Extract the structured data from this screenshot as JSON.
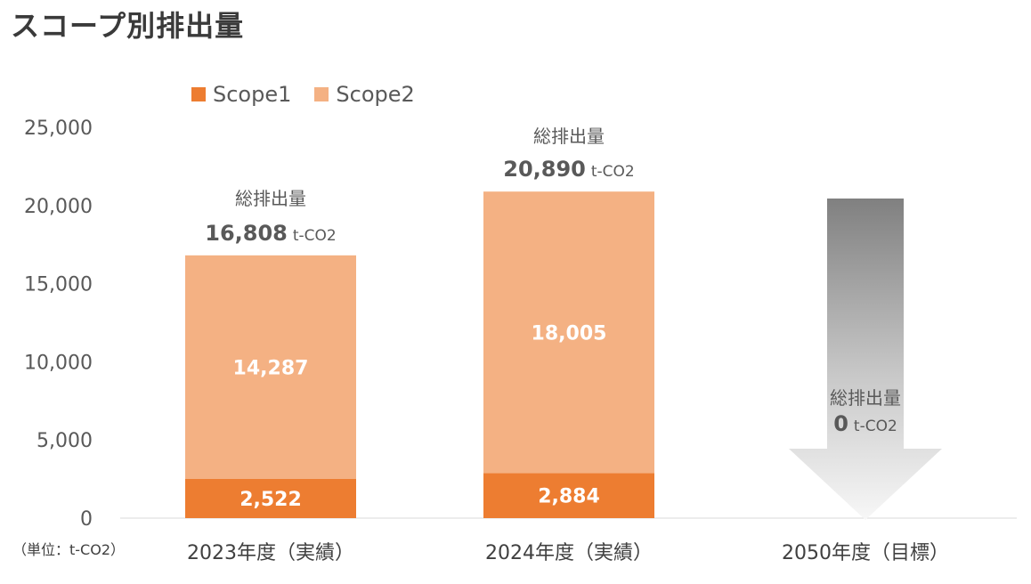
{
  "title": "スコープ別排出量",
  "unit_label": "（単位：t-CO2）",
  "colors": {
    "scope1": "#ed7d31",
    "scope2": "#f4b183",
    "axis_text": "#595959",
    "axis_line": "#d9d9d9"
  },
  "chart_data": {
    "type": "bar",
    "stacked": true,
    "categories": [
      "2023年度（実績）",
      "2024年度（実績）",
      "2050年度（目標）"
    ],
    "series": [
      {
        "name": "Scope1",
        "values": [
          2522,
          2884,
          null
        ],
        "labels": [
          "2,522",
          "2,884",
          ""
        ]
      },
      {
        "name": "Scope2",
        "values": [
          14287,
          18005,
          null
        ],
        "labels": [
          "14,287",
          "18,005",
          ""
        ]
      }
    ],
    "ylim": [
      0,
      25000
    ],
    "yticks": [
      0,
      5000,
      10000,
      15000,
      20000,
      25000
    ],
    "ytick_labels": [
      "0",
      "5,000",
      "10,000",
      "15,000",
      "20,000",
      "25,000"
    ],
    "legend_position": "top-left",
    "grid": false,
    "totals": [
      {
        "label": "総排出量",
        "value": 16808,
        "value_text": "16,808",
        "unit": "t-CO2"
      },
      {
        "label": "総排出量",
        "value": 20890,
        "value_text": "20,890",
        "unit": "t-CO2"
      },
      {
        "label": "総排出量",
        "value": 0,
        "value_text": "0",
        "unit": "t-CO2"
      }
    ],
    "target_indicator": "down-arrow"
  }
}
